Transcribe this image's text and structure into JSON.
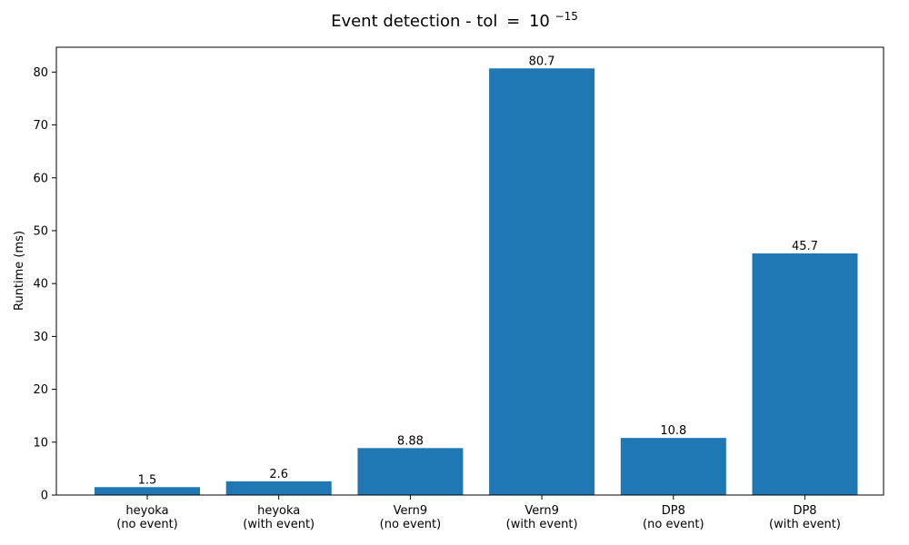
{
  "chart_data": {
    "type": "bar",
    "title": "Event detection - tol",
    "title_math": {
      "operator": "=",
      "base": "10",
      "exponent": "−15"
    },
    "xlabel": "",
    "ylabel": "Runtime (ms)",
    "categories": [
      [
        "heyoka",
        "(no event)"
      ],
      [
        "heyoka",
        "(with event)"
      ],
      [
        "Vern9",
        "(no event)"
      ],
      [
        "Vern9",
        "(with event)"
      ],
      [
        "DP8",
        "(no event)"
      ],
      [
        "DP8",
        "(with event)"
      ]
    ],
    "values": [
      1.5,
      2.6,
      8.88,
      80.7,
      10.8,
      45.7
    ],
    "data_labels": [
      "1.5",
      "2.6",
      "8.88",
      "80.7",
      "10.8",
      "45.7"
    ],
    "ylim": [
      0,
      84.7
    ],
    "yticks": [
      0,
      10,
      20,
      30,
      40,
      50,
      60,
      70,
      80
    ],
    "grid": false,
    "bar_color": "#1f77b4"
  }
}
